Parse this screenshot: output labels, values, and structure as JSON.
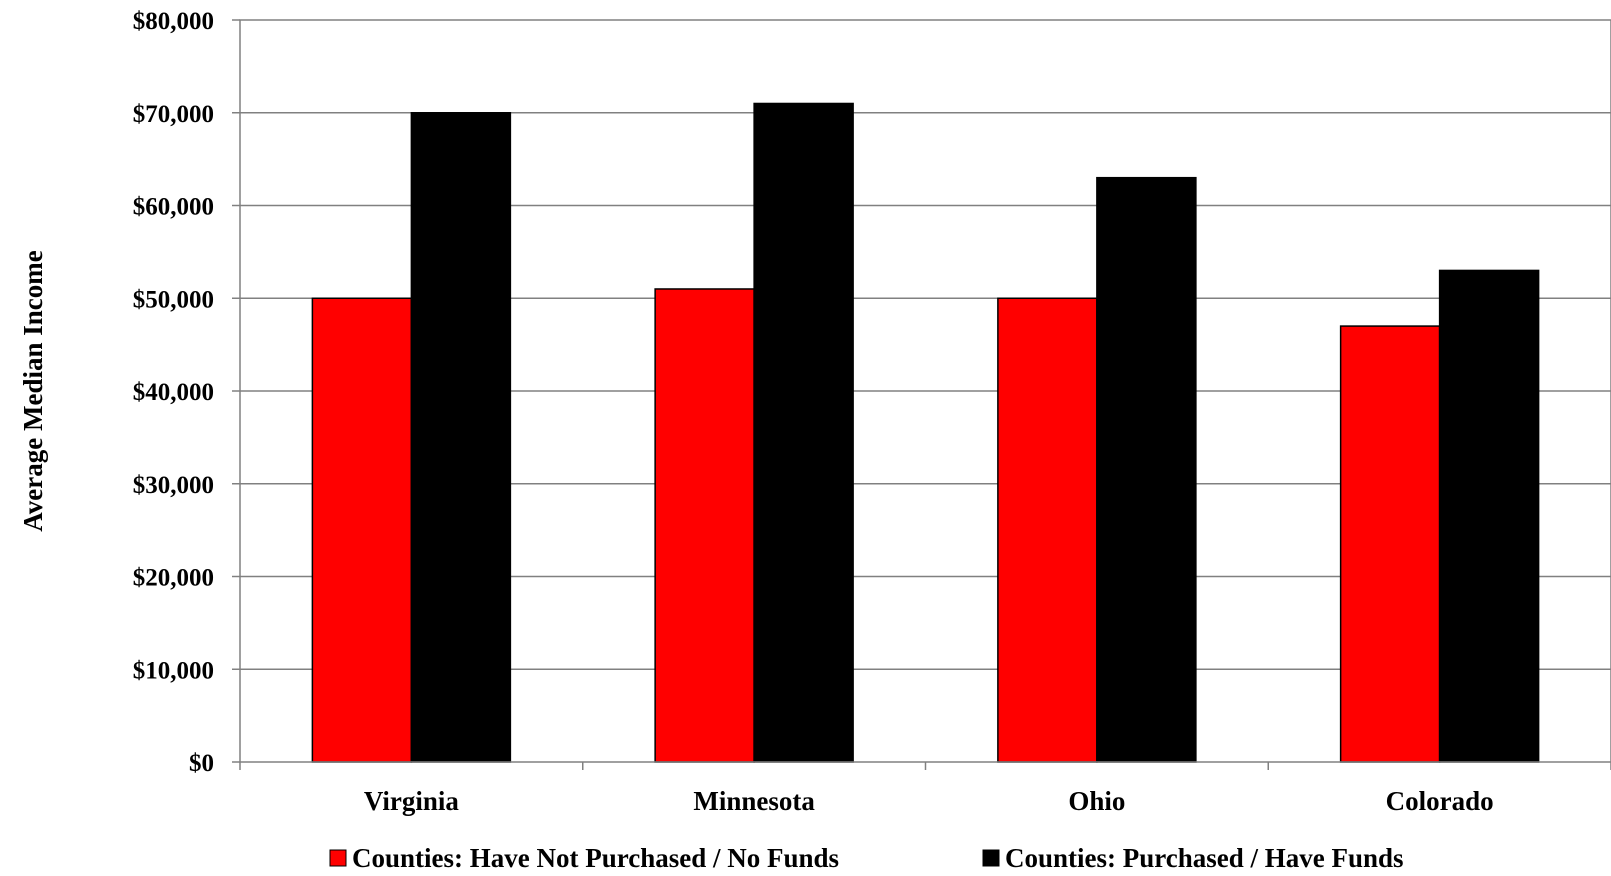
{
  "chart_data": {
    "type": "bar",
    "title": "",
    "xlabel": "",
    "ylabel": "Average Median Income",
    "categories": [
      "Virginia",
      "Minnesota",
      "Ohio",
      "Colorado"
    ],
    "series": [
      {
        "name": "Counties: Have Not Purchased / No Funds",
        "color": "#ff0000",
        "values": [
          50000,
          51000,
          50000,
          47000
        ]
      },
      {
        "name": "Counties: Purchased / Have Funds",
        "color": "#000000",
        "values": [
          70000,
          71000,
          63000,
          53000
        ]
      }
    ],
    "ylim": [
      0,
      80000
    ],
    "yticks": [
      "$0",
      "$10,000",
      "$20,000",
      "$30,000",
      "$40,000",
      "$50,000",
      "$60,000",
      "$70,000",
      "$80,000"
    ],
    "grid": true,
    "legend_position": "bottom"
  }
}
